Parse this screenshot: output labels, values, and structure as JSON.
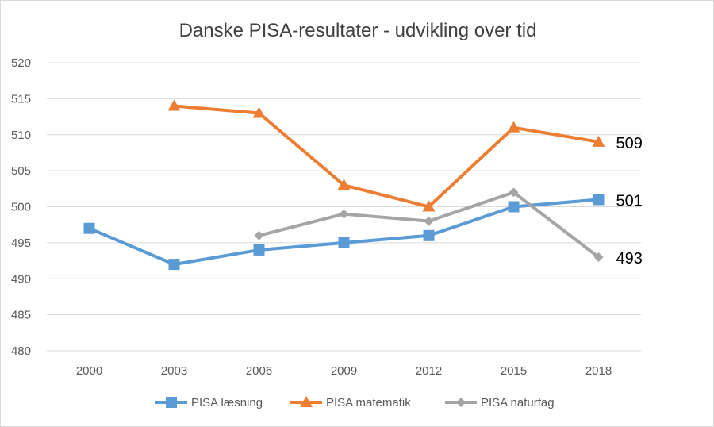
{
  "chart_data": {
    "type": "line",
    "title": "Danske PISA-resultater - udvikling over tid",
    "categories": [
      "2000",
      "2003",
      "2006",
      "2009",
      "2012",
      "2015",
      "2018"
    ],
    "ylim": [
      480,
      520
    ],
    "yticks": [
      480,
      485,
      490,
      495,
      500,
      505,
      510,
      515,
      520
    ],
    "grid": true,
    "legend": "bottom",
    "series": [
      {
        "name": "PISA læsning",
        "color": "#5b9bd5",
        "marker": "square",
        "values": [
          497,
          492,
          494,
          495,
          496,
          500,
          501
        ],
        "end_label": "501"
      },
      {
        "name": "PISA matematik",
        "color": "#ed7d31",
        "marker": "triangle",
        "values": [
          null,
          514,
          513,
          503,
          500,
          511,
          509
        ],
        "end_label": "509"
      },
      {
        "name": "PISA naturfag",
        "color": "#a5a5a5",
        "marker": "diamond",
        "values": [
          null,
          null,
          496,
          499,
          498,
          502,
          493
        ],
        "end_label": "493"
      }
    ]
  }
}
